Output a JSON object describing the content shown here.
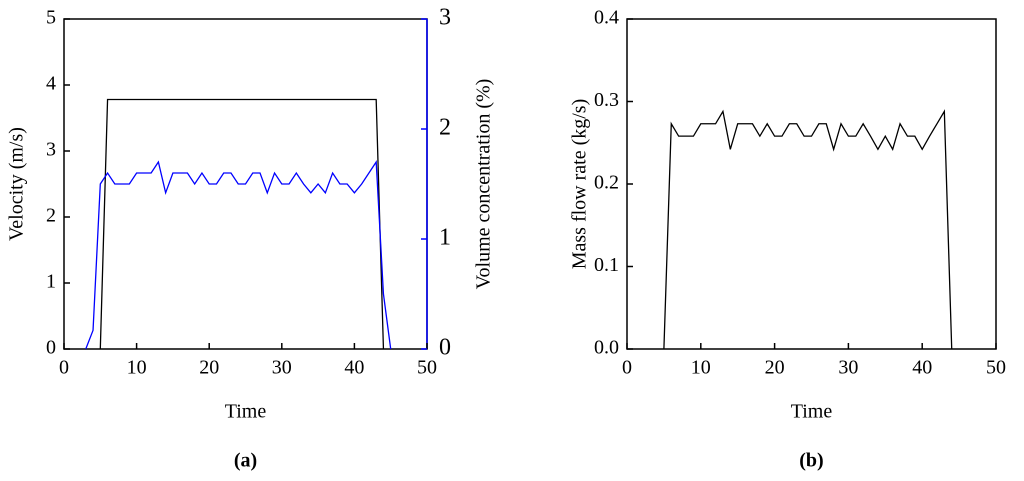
{
  "chart_data": [
    {
      "type": "line",
      "caption": "(a)",
      "xlabel": "Time",
      "ylabel": "Velocity (m/s)",
      "y2label": "Volume concentration (%)",
      "xlim": [
        0,
        50
      ],
      "xticks": [
        0,
        10,
        20,
        30,
        40,
        50
      ],
      "ylim": [
        0,
        5
      ],
      "yticks": [
        0,
        1,
        2,
        3,
        4,
        5
      ],
      "y2lim": [
        0,
        3
      ],
      "y2ticks": [
        0,
        1,
        2,
        3
      ],
      "y2color": "#0000ff",
      "series": [
        {
          "color": "#000000",
          "x": [
            5,
            6,
            43,
            44
          ],
          "values": [
            0,
            3.78,
            3.78,
            0
          ]
        },
        {
          "color": "#0000ff",
          "axis": "y2",
          "x": [
            3,
            4,
            5,
            6,
            7,
            8,
            9,
            10,
            11,
            12,
            13,
            14,
            15,
            16,
            17,
            18,
            19,
            20,
            21,
            22,
            23,
            24,
            25,
            26,
            27,
            28,
            29,
            30,
            31,
            32,
            33,
            34,
            35,
            36,
            37,
            38,
            39,
            40,
            41,
            42,
            43,
            44,
            45
          ],
          "values": [
            0,
            0.17,
            1.5,
            1.6,
            1.5,
            1.5,
            1.5,
            1.6,
            1.6,
            1.6,
            1.7,
            1.42,
            1.6,
            1.6,
            1.6,
            1.5,
            1.6,
            1.5,
            1.5,
            1.6,
            1.6,
            1.5,
            1.5,
            1.6,
            1.6,
            1.42,
            1.6,
            1.5,
            1.5,
            1.6,
            1.5,
            1.42,
            1.5,
            1.42,
            1.6,
            1.5,
            1.5,
            1.42,
            1.5,
            1.6,
            1.7,
            0.5,
            0
          ]
        }
      ]
    },
    {
      "type": "line",
      "caption": "(b)",
      "xlabel": "Time",
      "ylabel": "Mass flow rate (kg/s)",
      "xlim": [
        0,
        50
      ],
      "xticks": [
        0,
        10,
        20,
        30,
        40,
        50
      ],
      "ylim": [
        0,
        0.4
      ],
      "yticks": [
        {
          "value": 0,
          "label": "0.0"
        },
        0.1,
        0.2,
        0.3,
        0.4
      ],
      "series": [
        {
          "color": "#000000",
          "x": [
            5,
            6,
            7,
            8,
            9,
            10,
            11,
            12,
            13,
            14,
            15,
            16,
            17,
            18,
            19,
            20,
            21,
            22,
            23,
            24,
            25,
            26,
            27,
            28,
            29,
            30,
            31,
            32,
            33,
            34,
            35,
            36,
            37,
            38,
            39,
            40,
            41,
            42,
            43,
            44
          ],
          "values": [
            0,
            0.273,
            0.258,
            0.258,
            0.258,
            0.273,
            0.273,
            0.273,
            0.288,
            0.242,
            0.273,
            0.273,
            0.273,
            0.258,
            0.273,
            0.258,
            0.258,
            0.273,
            0.273,
            0.258,
            0.258,
            0.273,
            0.273,
            0.242,
            0.273,
            0.258,
            0.258,
            0.273,
            0.258,
            0.242,
            0.258,
            0.242,
            0.273,
            0.258,
            0.258,
            0.242,
            0.258,
            0.273,
            0.288,
            0
          ]
        }
      ]
    }
  ]
}
